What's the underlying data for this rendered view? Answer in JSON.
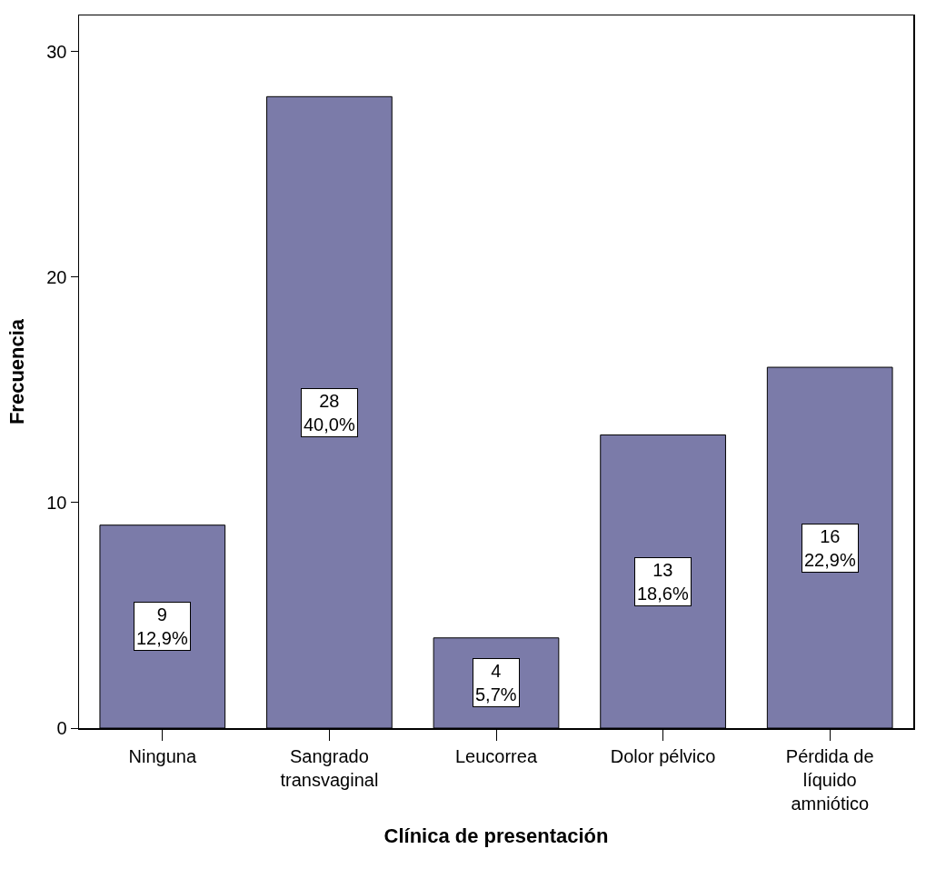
{
  "chart_data": {
    "type": "bar",
    "xlabel": "Clínica de presentación",
    "ylabel": "Frecuencia",
    "categories": [
      "Ninguna",
      "Sangrado transvaginal",
      "Leucorrea",
      "Dolor pélvico",
      "Pérdida de líquido amniótico"
    ],
    "values": [
      9,
      28,
      4,
      13,
      16
    ],
    "value_labels": [
      "9\n12,9%",
      "28\n40,0%",
      "4\n5,7%",
      "13\n18,6%",
      "16\n22,9%"
    ],
    "color": "#7b7ba9",
    "ylim": [
      0,
      31.6
    ],
    "yticks": [
      0,
      10,
      20,
      30
    ],
    "grid": false,
    "legend": false
  }
}
